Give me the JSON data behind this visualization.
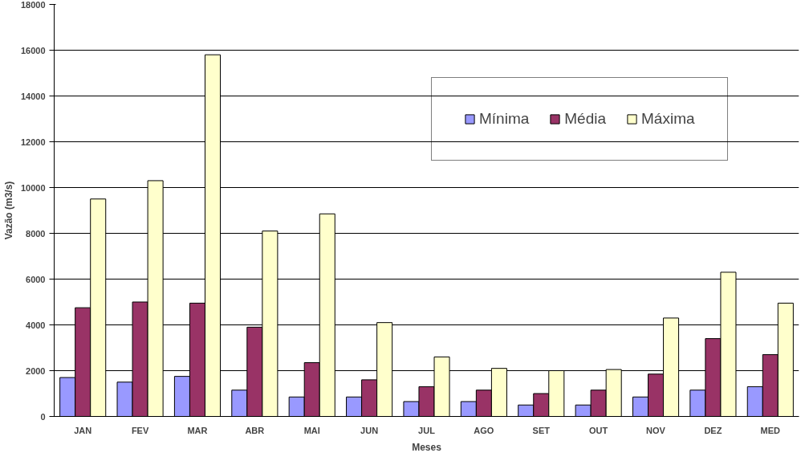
{
  "chart_data": {
    "type": "bar",
    "xlabel": "Meses",
    "ylabel": "Vazão (m3/s)",
    "categories": [
      "JAN",
      "FEV",
      "MAR",
      "ABR",
      "MAI",
      "JUN",
      "JUL",
      "AGO",
      "SET",
      "OUT",
      "NOV",
      "DEZ",
      "MED"
    ],
    "series": [
      {
        "name": "Mínima",
        "color": "#9999ff",
        "values": [
          1700,
          1500,
          1750,
          1150,
          850,
          850,
          650,
          650,
          500,
          500,
          850,
          1150,
          1300
        ]
      },
      {
        "name": "Média",
        "color": "#993366",
        "values": [
          4750,
          5000,
          4950,
          3900,
          2350,
          1600,
          1300,
          1150,
          1000,
          1150,
          1850,
          3400,
          2700
        ]
      },
      {
        "name": "Máxima",
        "color": "#ffffcc",
        "values": [
          9500,
          10300,
          15800,
          8100,
          8850,
          4100,
          2600,
          2100,
          2000,
          2050,
          4300,
          6300,
          4950
        ]
      }
    ],
    "ylim": [
      0,
      18000
    ],
    "yticks": [
      0,
      2000,
      4000,
      6000,
      8000,
      10000,
      12000,
      14000,
      16000,
      18000
    ],
    "grid": "y",
    "legend": "top right"
  }
}
